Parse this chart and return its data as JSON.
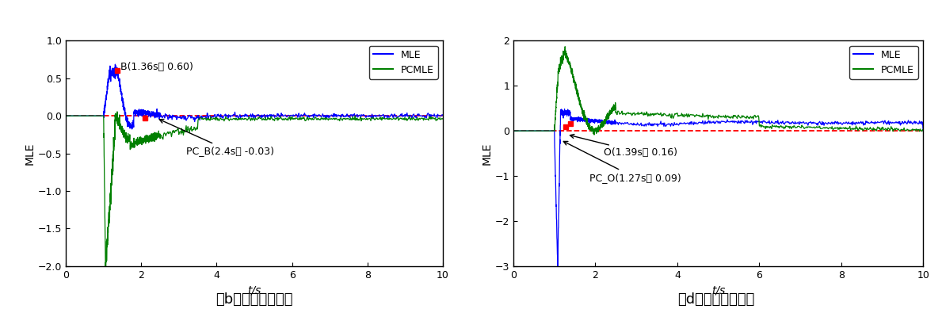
{
  "fig_width": 11.89,
  "fig_height": 3.95,
  "dpi": 100,
  "subplot_b": {
    "xlim": [
      0,
      10
    ],
    "ylim": [
      -2.0,
      1.0
    ],
    "yticks": [
      -2.0,
      -1.5,
      -1.0,
      -0.5,
      0.0,
      0.5,
      1.0
    ],
    "xticks": [
      0,
      2,
      4,
      6,
      8,
      10
    ],
    "xlabel": "t/s",
    "ylabel": "MLE",
    "mle_color": "#0000FF",
    "pcmle_color": "#008000",
    "dashed_color": "#FF0000",
    "point_B": [
      1.36,
      0.6
    ],
    "point_PCB": [
      2.4,
      -0.03
    ],
    "label_B": "B(1.36s， 0.60)",
    "label_PCB": "PC_B(2.4s， -0.03)",
    "caption": "（b）电压稳定场景",
    "legend_labels": [
      "MLE",
      "PCMLE"
    ]
  },
  "subplot_d": {
    "xlim": [
      0,
      10
    ],
    "ylim": [
      -3.0,
      2.0
    ],
    "yticks": [
      -3,
      -2,
      -1,
      0,
      1,
      2
    ],
    "xticks": [
      0,
      2,
      4,
      6,
      8,
      10
    ],
    "xlabel": "t/s",
    "ylabel": "MLE",
    "mle_color": "#0000FF",
    "pcmle_color": "#008000",
    "dashed_color": "#FF0000",
    "point_O": [
      1.39,
      0.16
    ],
    "point_PCO": [
      1.27,
      0.09
    ],
    "label_O": "O(1.39s， 0.16)",
    "label_PCO": "PC_O(1.27s， 0.09)",
    "caption": "（d）电压失稳场景",
    "legend_labels": [
      "MLE",
      "PCMLE"
    ]
  }
}
